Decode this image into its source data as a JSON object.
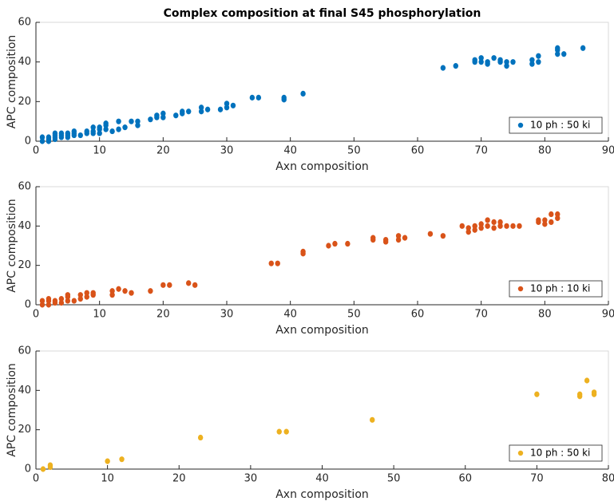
{
  "chart_data": [
    {
      "type": "scatter",
      "title": "Complex composition at final S45 phosphorylation",
      "x_label": "Axn composition",
      "y_label": "APC composition",
      "xlim": [
        0,
        90
      ],
      "ylim": [
        0,
        60
      ],
      "xticks": [
        0,
        10,
        20,
        30,
        40,
        50,
        60,
        70,
        80,
        90
      ],
      "yticks": [
        0,
        20,
        40,
        60
      ],
      "legend": "lower right",
      "series": [
        {
          "name": "10 ph : 50 ki",
          "color": "#0072bd",
          "x": [
            1,
            1,
            2,
            2,
            2,
            3,
            3,
            3,
            3,
            4,
            4,
            4,
            5,
            5,
            5,
            6,
            6,
            6,
            7,
            8,
            8,
            9,
            9,
            9,
            10,
            10,
            10,
            11,
            11,
            11,
            12,
            13,
            13,
            14,
            15,
            16,
            16,
            18,
            19,
            19,
            20,
            20,
            22,
            23,
            23,
            24,
            26,
            26,
            27,
            29,
            30,
            30,
            31,
            34,
            35,
            39,
            39,
            42,
            64,
            66,
            69,
            69,
            70,
            70,
            71,
            71,
            72,
            73,
            73,
            74,
            74,
            75,
            78,
            78,
            79,
            79,
            82,
            82,
            82,
            83,
            86
          ],
          "values": [
            0,
            2,
            0,
            1,
            2,
            1,
            2,
            3,
            4,
            2,
            3,
            4,
            2,
            3,
            4,
            3,
            4,
            5,
            3,
            4,
            5,
            4,
            5,
            7,
            4,
            6,
            7,
            6,
            8,
            9,
            5,
            6,
            10,
            7,
            10,
            8,
            10,
            11,
            12,
            13,
            12,
            14,
            13,
            14,
            15,
            15,
            15,
            17,
            16,
            16,
            17,
            19,
            18,
            22,
            22,
            21,
            22,
            24,
            37,
            38,
            40,
            41,
            40,
            42,
            39,
            40,
            42,
            40,
            41,
            38,
            40,
            40,
            39,
            41,
            40,
            43,
            44,
            46,
            47,
            44,
            47
          ]
        }
      ]
    },
    {
      "type": "scatter",
      "x_label": "Axn composition",
      "y_label": "APC composition",
      "xlim": [
        0,
        90
      ],
      "ylim": [
        0,
        60
      ],
      "xticks": [
        0,
        10,
        20,
        30,
        40,
        50,
        60,
        70,
        80,
        90
      ],
      "yticks": [
        0,
        20,
        40,
        60
      ],
      "legend": "lower right",
      "series": [
        {
          "name": "10 ph : 10 ki",
          "color": "#d95319",
          "x": [
            1,
            1,
            2,
            2,
            2,
            3,
            3,
            4,
            4,
            5,
            5,
            5,
            6,
            7,
            7,
            8,
            8,
            9,
            9,
            12,
            12,
            13,
            14,
            15,
            18,
            20,
            21,
            24,
            25,
            37,
            38,
            42,
            42,
            46,
            47,
            49,
            53,
            53,
            55,
            55,
            57,
            57,
            58,
            62,
            64,
            67,
            68,
            68,
            69,
            69,
            70,
            70,
            71,
            71,
            72,
            72,
            73,
            73,
            74,
            75,
            76,
            79,
            79,
            80,
            80,
            81,
            81,
            82,
            82
          ],
          "values": [
            0,
            2,
            0,
            2,
            3,
            1,
            2,
            1,
            3,
            2,
            4,
            5,
            2,
            3,
            5,
            4,
            6,
            5,
            6,
            5,
            7,
            8,
            7,
            6,
            7,
            10,
            10,
            11,
            10,
            21,
            21,
            26,
            27,
            30,
            31,
            31,
            33,
            34,
            32,
            33,
            33,
            35,
            34,
            36,
            35,
            40,
            37,
            39,
            38,
            40,
            39,
            41,
            40,
            43,
            39,
            42,
            40,
            42,
            40,
            40,
            40,
            42,
            43,
            41,
            43,
            42,
            46,
            44,
            46
          ]
        }
      ]
    },
    {
      "type": "scatter",
      "x_label": "Axn composition",
      "y_label": "APC composition",
      "xlim": [
        0,
        80
      ],
      "ylim": [
        0,
        60
      ],
      "xticks": [
        0,
        10,
        20,
        30,
        40,
        50,
        60,
        70,
        80
      ],
      "yticks": [
        0,
        20,
        40,
        60
      ],
      "legend": "lower right",
      "series": [
        {
          "name": "10 ph : 50 ki",
          "color": "#edb120",
          "x": [
            1,
            2,
            2,
            10,
            12,
            23,
            34,
            35,
            47,
            70,
            76,
            76,
            77,
            78,
            78
          ],
          "values": [
            0,
            1,
            2,
            4,
            5,
            16,
            19,
            19,
            25,
            38,
            37,
            38,
            45,
            38,
            39
          ]
        }
      ]
    }
  ]
}
